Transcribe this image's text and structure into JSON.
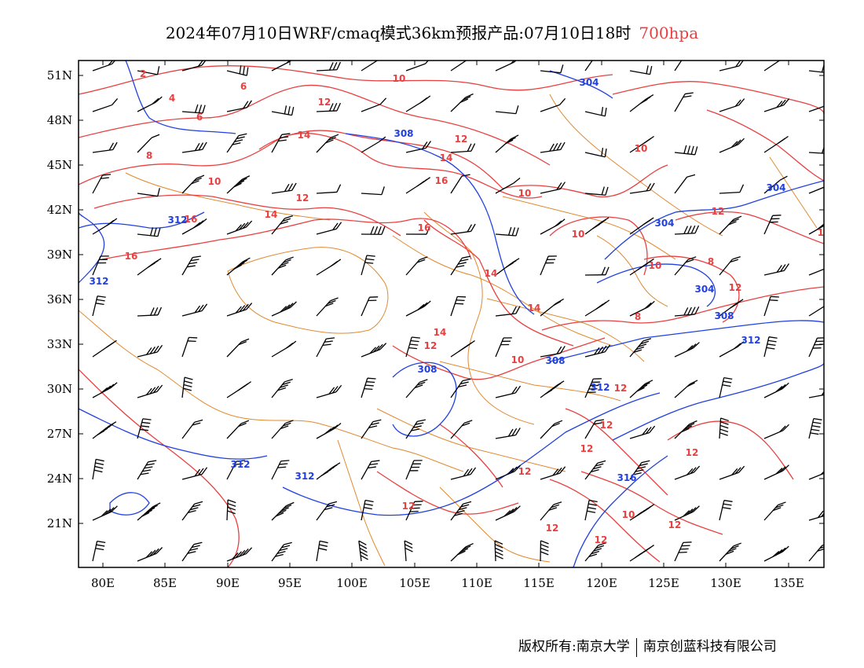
{
  "title": {
    "main": "2024年07月10日WRF/cmaq模式36km预报产品:07月10日18时",
    "level": "700hpa",
    "level_color": "#e84040"
  },
  "axes": {
    "lat_labels": [
      "51N",
      "48N",
      "45N",
      "42N",
      "39N",
      "36N",
      "33N",
      "30N",
      "27N",
      "24N",
      "21N"
    ],
    "lon_labels": [
      "80E",
      "85E",
      "90E",
      "95E",
      "100E",
      "105E",
      "110E",
      "115E",
      "120E",
      "125E",
      "130E",
      "135E"
    ]
  },
  "colors": {
    "temperature_contour": "#e84040",
    "height_contour": "#2040e0",
    "border": "#e08a30",
    "wind_barb": "#000000"
  },
  "temperature_labels": [
    "2",
    "4",
    "6",
    "6",
    "8",
    "10",
    "12",
    "14",
    "12",
    "14",
    "16",
    "10",
    "10",
    "12",
    "14",
    "16",
    "16",
    "16",
    "10",
    "10",
    "12",
    "14",
    "14",
    "14",
    "12",
    "10",
    "8",
    "10",
    "8",
    "12",
    "12",
    "12",
    "12",
    "12",
    "12",
    "12",
    "12",
    "12",
    "12",
    "12",
    "10"
  ],
  "height_labels": [
    "304",
    "308",
    "304",
    "304",
    "312",
    "312",
    "304",
    "308",
    "312",
    "308",
    "312",
    "312",
    "308",
    "316",
    "312"
  ],
  "footer": {
    "left": "版权所有:南京大学",
    "right": "南京创蓝科技有限公司"
  }
}
